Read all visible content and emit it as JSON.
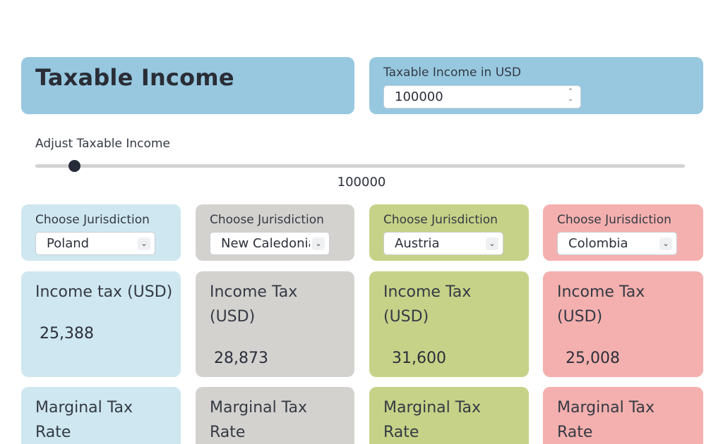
{
  "header": {
    "title": "Taxable Income",
    "income_label": "Taxable Income in USD",
    "income_value": "100000"
  },
  "slider": {
    "label": "Adjust Taxable Income",
    "value": "100000",
    "thumb_fraction": 0.06
  },
  "jurisdictions": [
    {
      "choose_label": "Choose Jurisdiction",
      "selected": "Poland",
      "tax_label": "Income tax (USD)",
      "tax_value": "25,388",
      "marginal_label": "Marginal Tax Rate",
      "color": "#cfe7f0"
    },
    {
      "choose_label": "Choose Jurisdiction",
      "selected": "New Caledonia",
      "tax_label": "Income Tax (USD)",
      "tax_value": "28,873",
      "marginal_label": "Marginal Tax Rate",
      "color": "#d4d2cf"
    },
    {
      "choose_label": "Choose Jurisdiction",
      "selected": "Austria",
      "tax_label": "Income Tax (USD)",
      "tax_value": "31,600",
      "marginal_label": "Marginal Tax Rate",
      "color": "#c6d287"
    },
    {
      "choose_label": "Choose Jurisdiction",
      "selected": "Colombia",
      "tax_label": "Income Tax (USD)",
      "tax_value": "25,008",
      "marginal_label": "Marginal Tax Rate",
      "color": "#f4b0ae"
    }
  ],
  "icons": {
    "select_chevron": "chevron-down-icon",
    "spinner": "spinner-arrows-icon"
  },
  "colors": {
    "header_blue": "#97c8e0",
    "slider_thumb": "#262b3a"
  }
}
